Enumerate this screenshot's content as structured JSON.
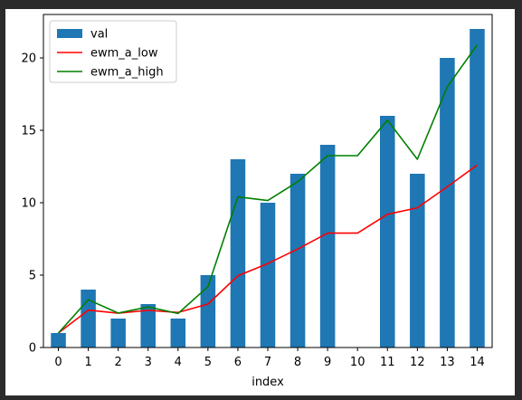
{
  "chart_data": {
    "type": "bar+line",
    "categories": [
      "0",
      "1",
      "2",
      "3",
      "4",
      "5",
      "6",
      "7",
      "8",
      "9",
      "10",
      "11",
      "12",
      "13",
      "14"
    ],
    "xlabel": "index",
    "ylabel": "",
    "ylim": [
      0,
      23
    ],
    "yticks": [
      0,
      5,
      10,
      15,
      20
    ],
    "grid": false,
    "legend_position": "top-left",
    "series": [
      {
        "name": "val",
        "kind": "bar",
        "color": "#1f77b4",
        "values": [
          1,
          4,
          2,
          3,
          2,
          5,
          13,
          10,
          12,
          14,
          null,
          16,
          12,
          20,
          22
        ]
      },
      {
        "name": "ewm_a_low",
        "kind": "line",
        "color": "#ff0000",
        "values": [
          1.0,
          2.58,
          2.37,
          2.57,
          2.42,
          3.0,
          4.95,
          5.8,
          6.8,
          7.9,
          7.9,
          9.2,
          9.65,
          11.1,
          12.6
        ]
      },
      {
        "name": "ewm_a_high",
        "kind": "line",
        "color": "#008000",
        "values": [
          1.0,
          3.3,
          2.38,
          2.8,
          2.35,
          4.2,
          10.4,
          10.15,
          11.45,
          13.25,
          13.25,
          15.7,
          13.0,
          18.0,
          20.9
        ]
      }
    ]
  }
}
